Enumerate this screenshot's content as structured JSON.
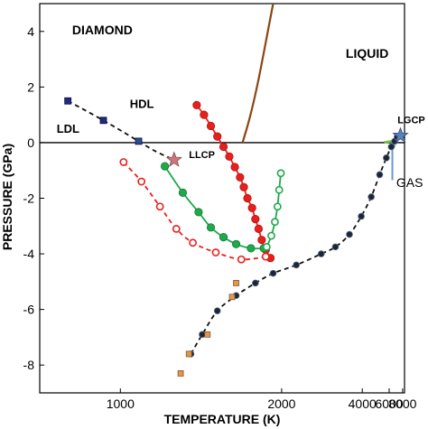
{
  "chart_data": {
    "type": "scatter",
    "xlabel": "TEMPERATURE (K)",
    "ylabel": "PRESSURE (GPa)",
    "xlim": [
      800,
      8400
    ],
    "ylim": [
      -9,
      5
    ],
    "xticks": [
      1000,
      2000,
      4000,
      6000,
      8000
    ],
    "xtick_labels": [
      "1000",
      "2000",
      "4000",
      "6000",
      "8000"
    ],
    "yticks": [
      -8,
      -6,
      -4,
      -2,
      0,
      2,
      4
    ],
    "ytick_labels": [
      "-8",
      "-6",
      "-4",
      "-2",
      "0",
      "2",
      "4"
    ],
    "grid": false,
    "zero_line": 0,
    "colors": {
      "diamond_boundary": "#8B4513",
      "red": "#e8201c",
      "green": "#1fa84c",
      "black": "#1a1a1a",
      "navy_point": "#1f2a80",
      "blue_point": "#2c4a9c",
      "orange_point": "#e8954a",
      "gas_line": "#66cc22",
      "llcp_star": "#c8787d",
      "lgcp_star": "#5b7fb8",
      "gas_arrow": "#6a9bd0"
    },
    "annotations": [
      {
        "text": "DIAMOND",
        "x": 870,
        "y": 3.9
      },
      {
        "text": "LIQUID",
        "x": 3320,
        "y": 3.05
      },
      {
        "text": "HDL",
        "x": 1030,
        "y": 1.25
      },
      {
        "text": "LDL",
        "x": 835,
        "y": 0.35
      },
      {
        "text": "LLCP",
        "x": 1270,
        "y": -0.55
      },
      {
        "text": "LGCP",
        "x": 7100,
        "y": 0.7
      },
      {
        "text": "GAS",
        "x": 6920,
        "y": -1.6
      }
    ],
    "series": [
      {
        "key": "diamond_liquid_boundary",
        "style": "line",
        "points": [
          [
            1900,
            5.0
          ],
          [
            1820,
            3.6
          ],
          [
            1740,
            2.1
          ],
          [
            1670,
            0.9
          ],
          [
            1610,
            0.0
          ]
        ]
      },
      {
        "key": "ldl_hdl_transition",
        "style": "dashed-markers",
        "marker": "square",
        "points": [
          [
            860,
            1.5
          ],
          [
            950,
            0.8
          ],
          [
            1060,
            0.05
          ]
        ]
      },
      {
        "key": "llcp_extension",
        "style": "dashed-line",
        "points": [
          [
            1060,
            0.05
          ],
          [
            1120,
            -0.3
          ],
          [
            1200,
            -0.62
          ]
        ]
      },
      {
        "key": "red_filled_spinodal",
        "style": "markers-line",
        "marker": "filled-circle",
        "points": [
          [
            1310,
            1.35
          ],
          [
            1350,
            1.0
          ],
          [
            1390,
            0.6
          ],
          [
            1430,
            0.22
          ],
          [
            1470,
            -0.15
          ],
          [
            1510,
            -0.5
          ],
          [
            1550,
            -0.88
          ],
          [
            1590,
            -1.25
          ],
          [
            1620,
            -1.6
          ],
          [
            1650,
            -2.0
          ],
          [
            1690,
            -2.35
          ],
          [
            1720,
            -2.75
          ],
          [
            1750,
            -3.1
          ],
          [
            1780,
            -3.5
          ],
          [
            1820,
            -3.85
          ],
          [
            1870,
            -4.15
          ]
        ]
      },
      {
        "key": "red_open_spinodal",
        "style": "dashed-markers",
        "marker": "open-circle",
        "points": [
          [
            1010,
            -0.7
          ],
          [
            1070,
            -1.4
          ],
          [
            1140,
            -2.3
          ],
          [
            1210,
            -3.1
          ],
          [
            1290,
            -3.6
          ],
          [
            1420,
            -3.95
          ],
          [
            1600,
            -4.2
          ],
          [
            1820,
            -4.1
          ]
        ]
      },
      {
        "key": "green_filled_spinodal",
        "style": "markers-line",
        "marker": "filled-circle",
        "points": [
          [
            1160,
            -0.85
          ],
          [
            1240,
            -1.8
          ],
          [
            1320,
            -2.5
          ],
          [
            1390,
            -3.05
          ],
          [
            1470,
            -3.4
          ],
          [
            1560,
            -3.65
          ],
          [
            1680,
            -3.8
          ],
          [
            1800,
            -3.8
          ]
        ]
      },
      {
        "key": "green_open_spinodal",
        "style": "markers-line",
        "marker": "open-circle",
        "points": [
          [
            1830,
            -3.75
          ],
          [
            1880,
            -3.35
          ],
          [
            1920,
            -2.85
          ],
          [
            1950,
            -2.3
          ],
          [
            1970,
            -1.7
          ],
          [
            1990,
            -1.1
          ]
        ]
      },
      {
        "key": "liquid_gas_spinodal",
        "style": "dashed-markers",
        "marker": "filled-circle",
        "points": [
          [
            1280,
            -7.6
          ],
          [
            1340,
            -6.9
          ],
          [
            1430,
            -6.05
          ],
          [
            1560,
            -5.5
          ],
          [
            1720,
            -5.05
          ],
          [
            1900,
            -4.7
          ],
          [
            2200,
            -4.4
          ],
          [
            2650,
            -4.0
          ],
          [
            3000,
            -3.75
          ],
          [
            3450,
            -3.3
          ],
          [
            3950,
            -2.65
          ],
          [
            4500,
            -1.95
          ],
          [
            5100,
            -1.15
          ],
          [
            5700,
            -0.55
          ],
          [
            6250,
            -0.15
          ],
          [
            6680,
            0.05
          ],
          [
            7050,
            0.2
          ]
        ]
      },
      {
        "key": "orange_points",
        "style": "markers",
        "marker": "square",
        "points": [
          [
            1230,
            -8.3
          ],
          [
            1270,
            -7.6
          ],
          [
            1370,
            -6.9
          ],
          [
            1530,
            -5.55
          ],
          [
            1560,
            -5.05
          ]
        ]
      },
      {
        "key": "liquid_gas_coexistence",
        "style": "line",
        "points": [
          [
            5500,
            0.02
          ],
          [
            6200,
            0.05
          ],
          [
            6800,
            0.12
          ],
          [
            7250,
            0.2
          ],
          [
            7600,
            0.25
          ]
        ]
      },
      {
        "key": "critical_points",
        "style": "markers",
        "marker": "star",
        "points": [
          [
            1200,
            -0.62
          ],
          [
            7600,
            0.25
          ]
        ],
        "labels": [
          "LLCP",
          "LGCP"
        ]
      }
    ]
  }
}
